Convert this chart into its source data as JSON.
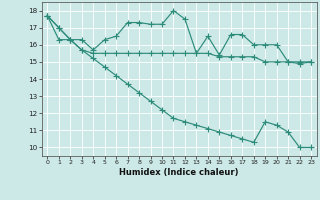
{
  "line1_x": [
    0,
    1,
    2,
    3,
    4,
    5,
    6,
    7,
    8,
    9,
    10,
    11,
    12,
    13,
    14,
    15,
    16,
    17,
    18,
    19,
    20,
    21,
    22,
    23
  ],
  "line1_y": [
    17.7,
    17.0,
    16.3,
    16.3,
    15.7,
    16.3,
    16.5,
    17.3,
    17.3,
    17.2,
    17.2,
    18.0,
    17.5,
    15.5,
    16.5,
    15.4,
    16.6,
    16.6,
    16.0,
    16.0,
    16.0,
    15.0,
    14.9,
    15.0
  ],
  "line2_x": [
    0,
    1,
    2,
    3,
    4,
    5,
    6,
    7,
    8,
    9,
    10,
    11,
    12,
    13,
    14,
    15,
    16,
    17,
    18,
    19,
    20,
    21,
    22,
    23
  ],
  "line2_y": [
    17.7,
    16.3,
    16.3,
    15.7,
    15.5,
    15.5,
    15.5,
    15.5,
    15.5,
    15.5,
    15.5,
    15.5,
    15.5,
    15.5,
    15.5,
    15.3,
    15.3,
    15.3,
    15.3,
    15.0,
    15.0,
    15.0,
    15.0,
    15.0
  ],
  "line3_x": [
    0,
    1,
    2,
    3,
    4,
    5,
    6,
    7,
    8,
    9,
    10,
    11,
    12,
    13,
    14,
    15,
    16,
    17,
    18,
    19,
    20,
    21,
    22,
    23
  ],
  "line3_y": [
    17.7,
    17.0,
    16.3,
    15.7,
    15.2,
    14.7,
    14.2,
    13.7,
    13.2,
    12.7,
    12.2,
    11.7,
    11.5,
    11.3,
    11.1,
    10.9,
    10.7,
    10.5,
    10.3,
    11.5,
    11.3,
    10.9,
    10.0,
    10.0
  ],
  "line_color": "#2d8b7a",
  "bg_color": "#cce9e7",
  "grid_color": "#b8dbd9",
  "xlabel": "Humidex (Indice chaleur)",
  "ylim": [
    9.5,
    18.5
  ],
  "xlim": [
    -0.5,
    23.5
  ],
  "yticks": [
    10,
    11,
    12,
    13,
    14,
    15,
    16,
    17,
    18
  ],
  "xticks": [
    0,
    1,
    2,
    3,
    4,
    5,
    6,
    7,
    8,
    9,
    10,
    11,
    12,
    13,
    14,
    15,
    16,
    17,
    18,
    19,
    20,
    21,
    22,
    23
  ]
}
